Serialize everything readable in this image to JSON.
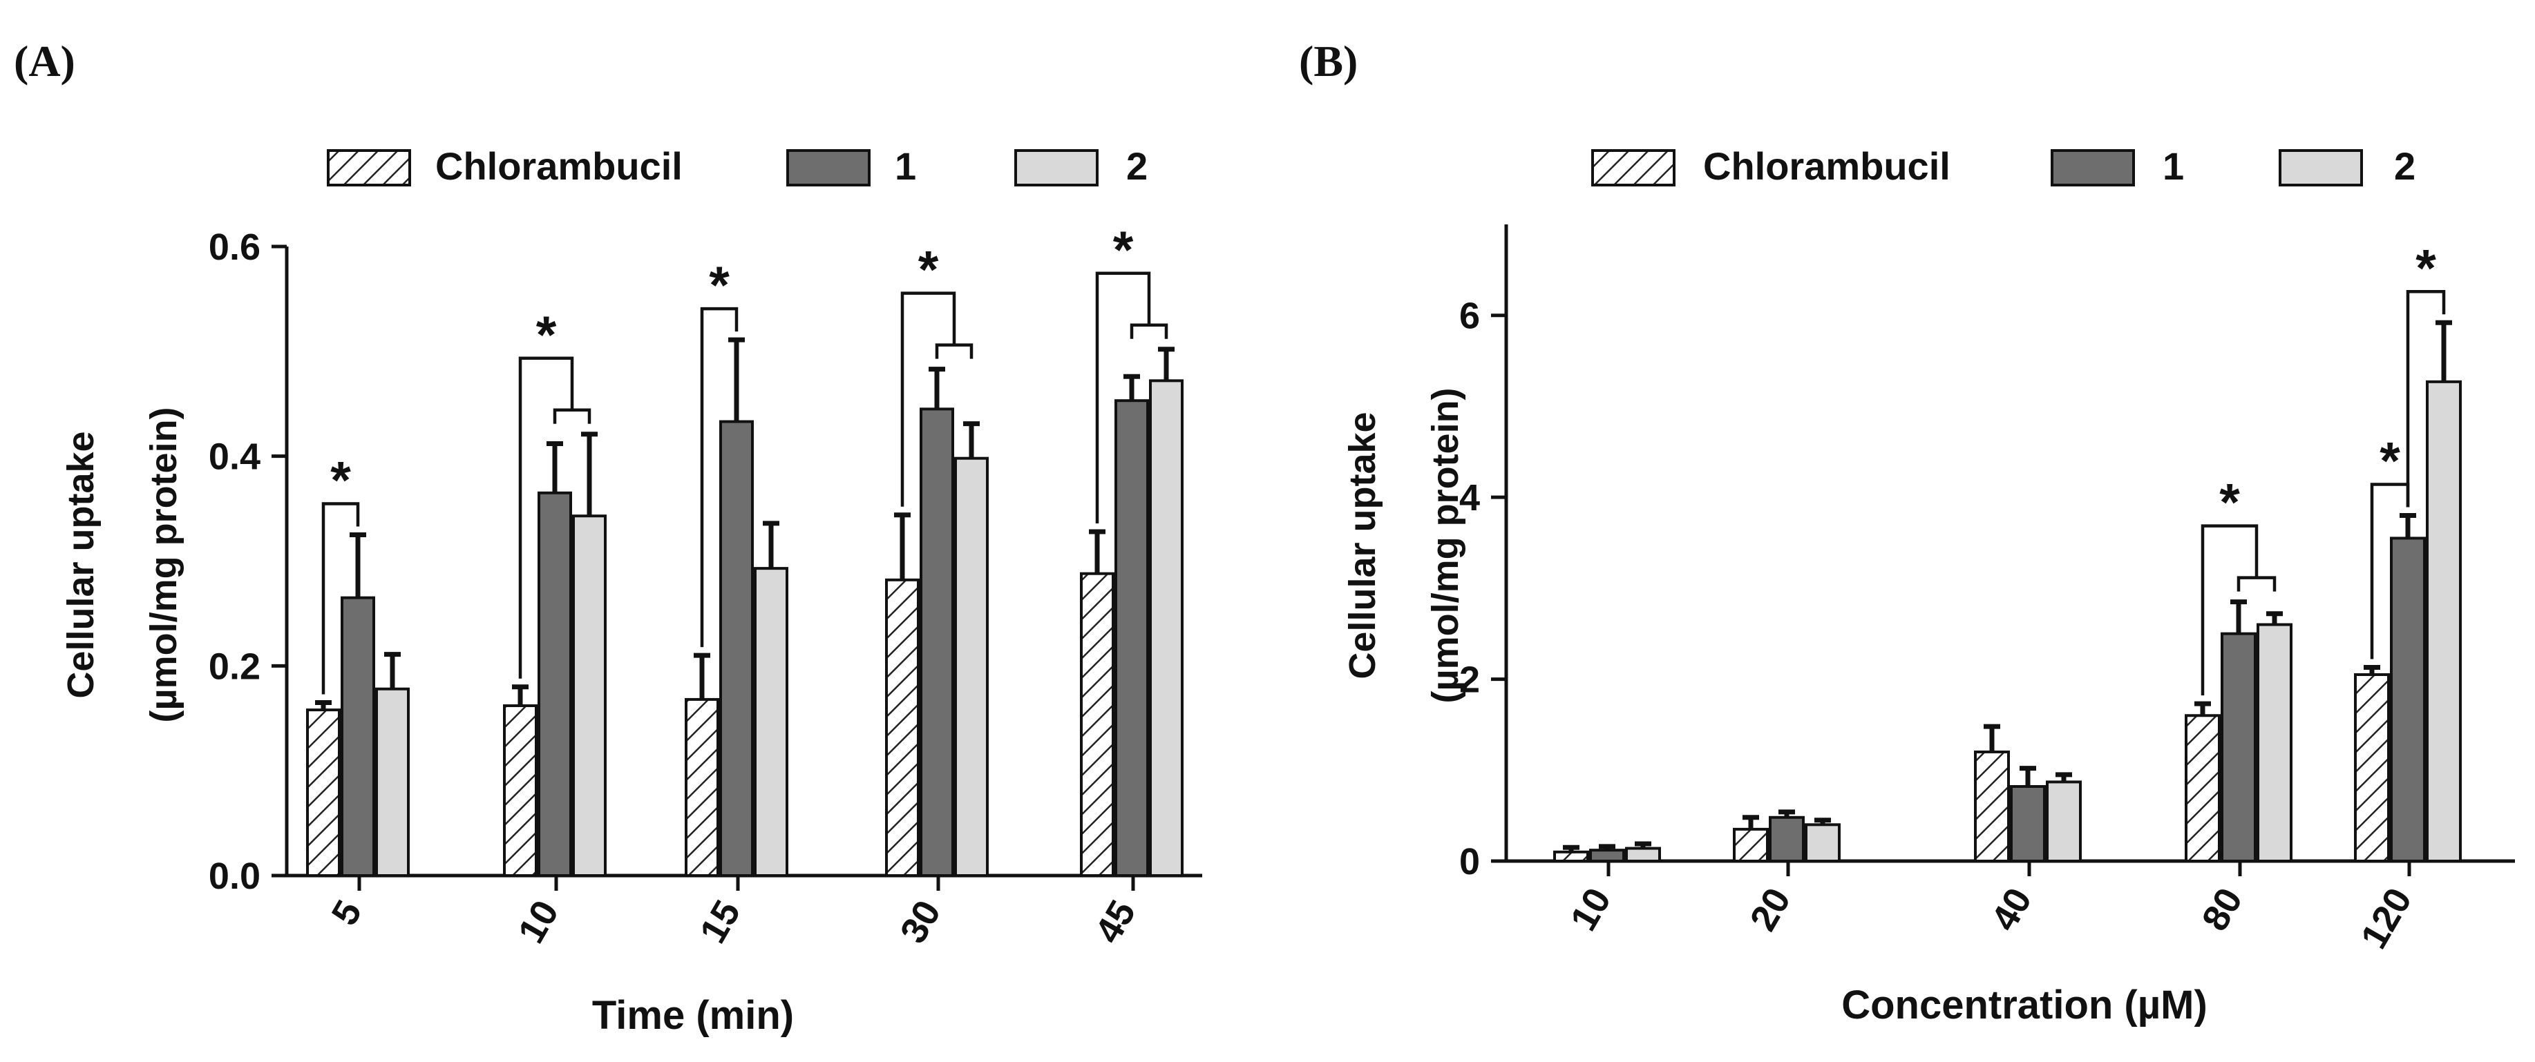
{
  "panels": [
    {
      "label": "(A)",
      "legend": [
        "Chlorambucil",
        "1",
        "2"
      ],
      "chart_data": {
        "type": "bar",
        "title": "",
        "xlabel": "Time (min)",
        "ylabel_line1": "Cellular uptake",
        "ylabel_line2": "(µmol/mg protein)",
        "categories": [
          "5",
          "10",
          "15",
          "30",
          "45"
        ],
        "ylim": [
          0,
          0.6
        ],
        "yticks": [
          "0.0",
          "0.2",
          "0.4",
          "0.6"
        ],
        "ytick_values": [
          0,
          0.2,
          0.4,
          0.6
        ],
        "series": [
          {
            "name": "Chlorambucil",
            "values": [
              0.158,
              0.162,
              0.168,
              0.282,
              0.288
            ],
            "errors": [
              0.007,
              0.018,
              0.042,
              0.062,
              0.04
            ]
          },
          {
            "name": "1",
            "values": [
              0.265,
              0.365,
              0.433,
              0.445,
              0.453
            ],
            "errors": [
              0.06,
              0.047,
              0.078,
              0.038,
              0.023
            ]
          },
          {
            "name": "2",
            "values": [
              0.178,
              0.343,
              0.293,
              0.398,
              0.472
            ],
            "errors": [
              0.033,
              0.078,
              0.043,
              0.033,
              0.03
            ]
          }
        ],
        "significance": [
          {
            "category": 0,
            "type": "pair",
            "from": 0,
            "to": 1,
            "mark": "*"
          },
          {
            "category": 1,
            "type": "group",
            "from": 0,
            "to": [
              1,
              2
            ],
            "mark": "*"
          },
          {
            "category": 2,
            "type": "pair",
            "from": 0,
            "to": 1,
            "mark": "*"
          },
          {
            "category": 3,
            "type": "group",
            "from": 0,
            "to": [
              1,
              2
            ],
            "mark": "*"
          },
          {
            "category": 4,
            "type": "group",
            "from": 0,
            "to": [
              1,
              2
            ],
            "mark": "*"
          }
        ]
      }
    },
    {
      "label": "(B)",
      "legend": [
        "Chlorambucil",
        "1",
        "2"
      ],
      "chart_data": {
        "type": "bar",
        "title": "",
        "xlabel": "Concentration (µM)",
        "ylabel_line1": "Cellular uptake",
        "ylabel_line2": "(µmol/mg protein)",
        "categories": [
          "10",
          "20",
          "40",
          "80",
          "120"
        ],
        "ylim": [
          0,
          7
        ],
        "yticks": [
          "0",
          "2",
          "4",
          "6"
        ],
        "ytick_values": [
          0,
          2,
          4,
          6
        ],
        "series": [
          {
            "name": "Chlorambucil",
            "values": [
              0.1,
              0.35,
              1.2,
              1.6,
              2.05
            ],
            "errors": [
              0.05,
              0.13,
              0.28,
              0.13,
              0.08
            ]
          },
          {
            "name": "1",
            "values": [
              0.12,
              0.48,
              0.82,
              2.5,
              3.55
            ],
            "errors": [
              0.04,
              0.06,
              0.2,
              0.35,
              0.25
            ]
          },
          {
            "name": "2",
            "values": [
              0.14,
              0.4,
              0.87,
              2.6,
              5.27
            ],
            "errors": [
              0.05,
              0.05,
              0.08,
              0.12,
              0.65
            ]
          }
        ],
        "significance": [
          {
            "category": 3,
            "type": "group",
            "from": 0,
            "to": [
              1,
              2
            ],
            "mark": "*"
          },
          {
            "category": 4,
            "type": "pair",
            "from": 0,
            "to": 1,
            "mark": "*"
          },
          {
            "category": 4,
            "type": "pair",
            "from": 1,
            "to": 2,
            "mark": "*"
          }
        ]
      }
    }
  ]
}
